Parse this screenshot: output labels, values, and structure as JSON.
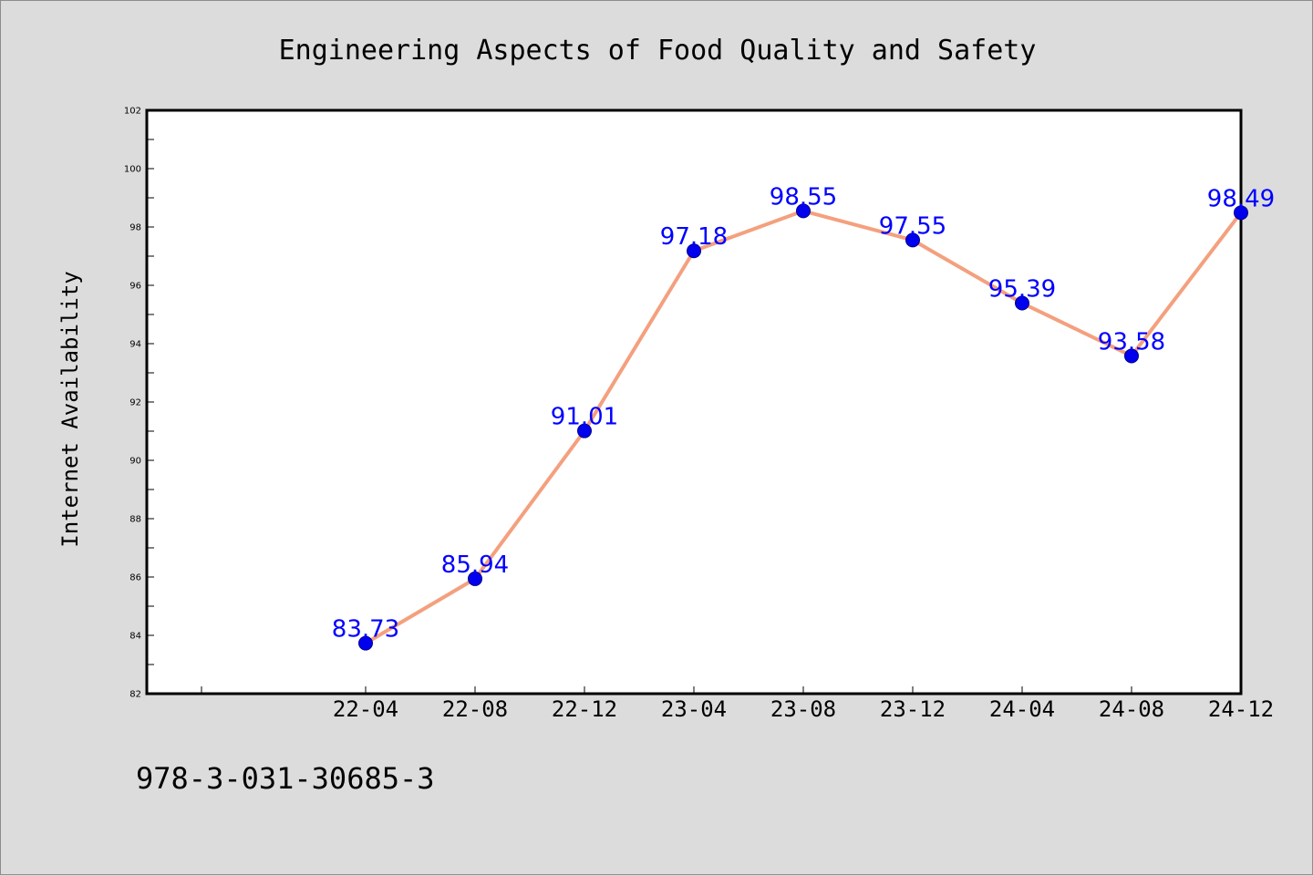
{
  "chart_data": {
    "type": "line",
    "title": "Engineering Aspects of Food Quality and Safety",
    "xlabel": "",
    "ylabel": "Internet Availability",
    "categories": [
      "22-04",
      "22-08",
      "22-12",
      "23-04",
      "23-08",
      "23-12",
      "24-04",
      "24-08",
      "24-12"
    ],
    "series": [
      {
        "values": [
          83.73,
          85.94,
          91.01,
          97.18,
          98.55,
          97.55,
          95.39,
          93.58,
          98.49
        ],
        "labels": [
          "83.73",
          "85.94",
          "91.01",
          "97.18",
          "98.55",
          "97.55",
          "95.39",
          "93.58",
          "98.49"
        ]
      }
    ],
    "ylim": [
      82,
      102
    ],
    "yticks": [
      "82",
      "84",
      "86",
      "88",
      "90",
      "92",
      "94",
      "96",
      "98",
      "100",
      "102"
    ],
    "grid": false,
    "legend": "none",
    "colors": {
      "line": "#f4a07e",
      "marker": "#0000ee",
      "data_label": "#0000ff",
      "background": "#dcdcdc",
      "plot_background": "#ffffff"
    }
  },
  "footer": {
    "isbn": "978-3-031-30685-3"
  }
}
